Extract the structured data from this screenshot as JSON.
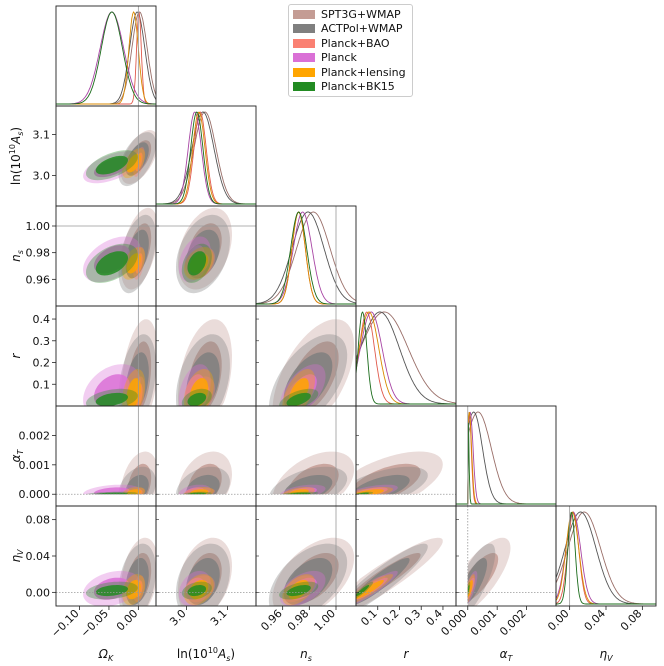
{
  "chart_data": {
    "type": "triangle-corner",
    "parameters": [
      {
        "key": "omegak",
        "label": "Ω",
        "sub": "K",
        "range": [
          -0.14,
          0.03
        ],
        "ticks": [
          -0.1,
          -0.05,
          0.0
        ],
        "ticklabels": [
          "−0.10",
          "−0.05",
          "0.00"
        ],
        "fiducial": 0.0
      },
      {
        "key": "lnAs",
        "label": "ln(10",
        "sup": "10",
        "suffix": "A",
        "sub": "s",
        "range": [
          2.925,
          3.17
        ],
        "ticks": [
          3.0,
          3.1
        ],
        "ticklabels": [
          "3.0",
          "3.1"
        ],
        "fiducial": null
      },
      {
        "key": "ns",
        "label": "n",
        "sub": "s",
        "range": [
          0.94,
          1.015
        ],
        "ticks": [
          0.96,
          0.98,
          1.0
        ],
        "ticklabels": [
          "0.96",
          "0.98",
          "1.00"
        ],
        "fiducial": 1.0
      },
      {
        "key": "r",
        "label": "r",
        "sub": "",
        "range": [
          0.0,
          0.46
        ],
        "ticks": [
          0.1,
          0.2,
          0.3,
          0.4
        ],
        "ticklabels": [
          "0.1",
          "0.2",
          "0.3",
          "0.4"
        ],
        "fiducial": null
      },
      {
        "key": "alphaT",
        "label": "α",
        "sub": "T",
        "range": [
          -0.0004,
          0.003
        ],
        "ticks": [
          0.0,
          0.001,
          0.002
        ],
        "ticklabels": [
          "0.000",
          "0.001",
          "0.002"
        ],
        "fiducial": 0.0
      },
      {
        "key": "etaV",
        "label": "η",
        "sub": "V",
        "range": [
          -0.015,
          0.095
        ],
        "ticks": [
          0.0,
          0.04,
          0.08
        ],
        "ticklabels": [
          "0.00",
          "0.04",
          "0.08"
        ],
        "fiducial": 0.0
      }
    ],
    "series": [
      {
        "name": "SPT3G+WMAP",
        "color": "#c49c94",
        "line": "#9a6f69",
        "mean": [
          0.002,
          3.045,
          0.983,
          0.13,
          0.00035,
          0.016
        ],
        "sd": [
          0.013,
          0.027,
          0.0125,
          0.11,
          0.00045,
          0.018
        ]
      },
      {
        "name": "ACTPol+WMAP",
        "color": "#7f7f7f",
        "line": "#555555",
        "mean": [
          -0.002,
          3.04,
          0.979,
          0.11,
          0.0002,
          0.012
        ],
        "sd": [
          0.013,
          0.027,
          0.012,
          0.09,
          0.0003,
          0.017
        ]
      },
      {
        "name": "Planck+BAO",
        "color": "#fa8072",
        "line": "#e05a4c",
        "mean": [
          0.001,
          3.033,
          0.972,
          0.05,
          5e-05,
          0.004
        ],
        "sd": [
          0.004,
          0.015,
          0.005,
          0.035,
          7e-05,
          0.006
        ]
      },
      {
        "name": "Planck",
        "color": "#da70d6",
        "line": "#a845a4",
        "mean": [
          -0.045,
          3.02,
          0.975,
          0.07,
          8e-05,
          0.004
        ],
        "sd": [
          0.02,
          0.016,
          0.007,
          0.05,
          0.0001,
          0.008
        ]
      },
      {
        "name": "Planck+lensing",
        "color": "#ffa500",
        "line": "#d98a00",
        "mean": [
          -0.008,
          3.03,
          0.972,
          0.06,
          5e-05,
          0.003
        ],
        "sd": [
          0.008,
          0.015,
          0.005,
          0.045,
          8e-05,
          0.007
        ]
      },
      {
        "name": "Planck+BK15",
        "color": "#228b22",
        "line": "#1a6b1a",
        "mean": [
          -0.045,
          3.025,
          0.972,
          0.03,
          1e-05,
          0.002
        ],
        "sd": [
          0.018,
          0.015,
          0.006,
          0.02,
          3e-05,
          0.004
        ]
      }
    ],
    "legend": "top-right",
    "grid": false
  }
}
